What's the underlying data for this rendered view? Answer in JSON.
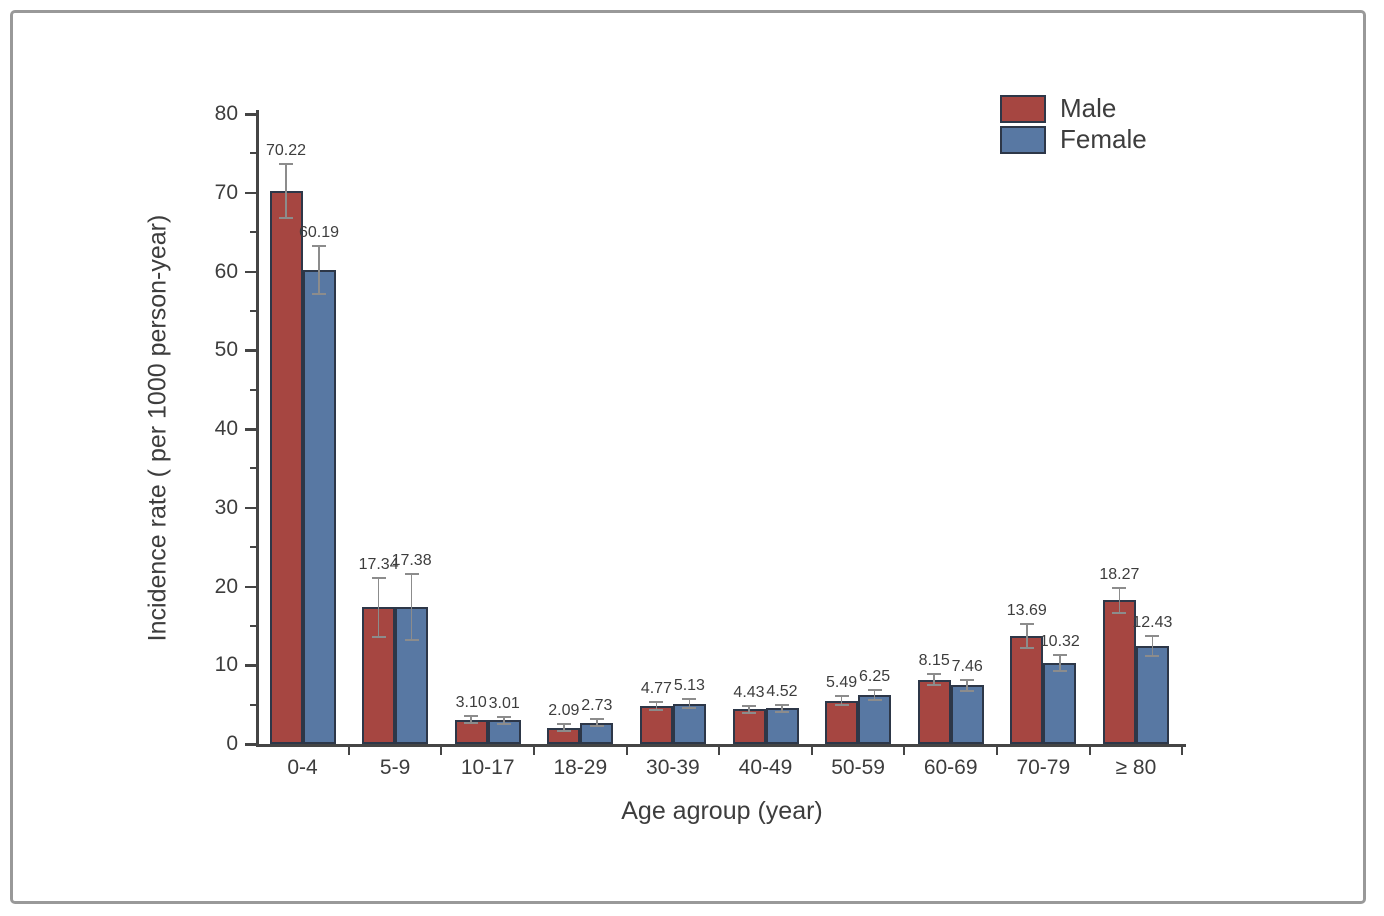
{
  "page": {
    "background_color": "#ffffff",
    "frame_border_color": "#999999"
  },
  "chart_data": {
    "type": "bar",
    "title": "",
    "xlabel": "Age agroup (year)",
    "ylabel": "Incidence rate ( per 1000 person-year)",
    "categories": [
      "0-4",
      "5-9",
      "10-17",
      "18-29",
      "30-39",
      "40-49",
      "50-59",
      "60-69",
      "70-79",
      "≥ 80"
    ],
    "series": [
      {
        "name": "Male",
        "color": "#a64641",
        "values": [
          70.22,
          17.34,
          3.1,
          2.09,
          4.77,
          4.43,
          5.49,
          8.15,
          13.69,
          18.27
        ],
        "errors": [
          3.4,
          3.7,
          0.4,
          0.4,
          0.5,
          0.45,
          0.55,
          0.7,
          1.5,
          1.6
        ]
      },
      {
        "name": "Female",
        "color": "#5878a3",
        "values": [
          60.19,
          17.38,
          3.01,
          2.73,
          5.13,
          4.52,
          6.25,
          7.46,
          10.32,
          12.43
        ],
        "errors": [
          3.0,
          4.2,
          0.45,
          0.45,
          0.55,
          0.45,
          0.6,
          0.7,
          1.0,
          1.3
        ]
      }
    ],
    "ylim": [
      0,
      80
    ],
    "yticks": [
      0,
      10,
      20,
      30,
      40,
      50,
      60,
      70,
      80
    ],
    "y_minor_step": 5,
    "grid": false,
    "error_bars": true,
    "value_label_decimals": 2,
    "legend": {
      "position": "top-right"
    },
    "colors": {
      "bar_border": "#2d3748",
      "error_bar": "#8c8c8c",
      "axis": "#454545",
      "text": "#3d3d3d"
    }
  }
}
